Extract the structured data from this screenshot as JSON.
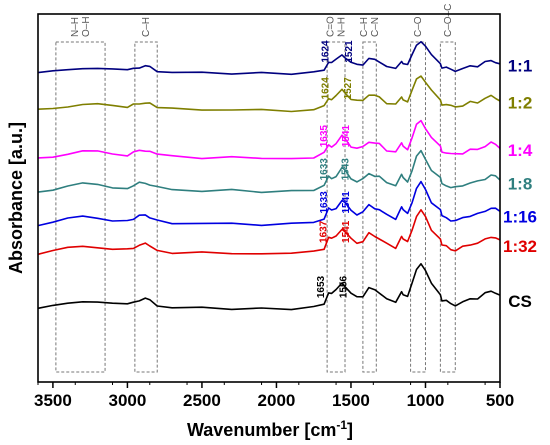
{
  "chart_data": {
    "type": "line",
    "title": "",
    "xlabel": "Wavenumber [cm",
    "xlabel_sup": "-1",
    "xlabel_end": "]",
    "ylabel": "Absorbance [a.u.]",
    "xlim": [
      3600,
      500
    ],
    "x_reversed": true,
    "y_ticks_shown": false,
    "grid": false,
    "legend": "inline-right",
    "x_ticks": [
      3500,
      3000,
      2500,
      2000,
      1500,
      1000,
      500
    ],
    "x_tick_labels": [
      "3500",
      "3000",
      "2500",
      "2000",
      "1500",
      "1000",
      "500"
    ],
    "band_regions": [
      {
        "labels": [
          "N–H",
          "O–H"
        ],
        "from": 3480,
        "to": 3150
      },
      {
        "labels": [
          "C–H"
        ],
        "from": 2950,
        "to": 2800
      },
      {
        "labels": [
          "C=O",
          "N–H"
        ],
        "from": 1660,
        "to": 1540
      },
      {
        "labels": [
          "C–H",
          "C–N"
        ],
        "from": 1420,
        "to": 1330
      },
      {
        "labels": [
          "C–O"
        ],
        "from": 1100,
        "to": 1000
      },
      {
        "labels": [
          "C–O–C"
        ],
        "from": 900,
        "to": 800
      }
    ],
    "series": [
      {
        "name": "1:1",
        "color": "#00007f",
        "baseline": 0.14,
        "peaks": [
          "1624",
          "1521"
        ]
      },
      {
        "name": "1:2",
        "color": "#7f7f00",
        "baseline": 0.24,
        "peaks": [
          "1624",
          "1527"
        ]
      },
      {
        "name": "1:4",
        "color": "#ff00ff",
        "baseline": 0.37,
        "peaks": [
          "1635",
          "1541"
        ]
      },
      {
        "name": "1:8",
        "color": "#2f7f7f",
        "baseline": 0.46,
        "peaks": [
          "1633",
          "1543"
        ]
      },
      {
        "name": "1:16",
        "color": "#0000e0",
        "baseline": 0.55,
        "peaks": [
          "1633",
          "1541"
        ]
      },
      {
        "name": "1:32",
        "color": "#e00000",
        "baseline": 0.63,
        "peaks": [
          "1637",
          "1541"
        ]
      },
      {
        "name": "CS",
        "color": "#000000",
        "baseline": 0.78,
        "peaks": [
          "1653",
          "1556"
        ]
      }
    ],
    "shape_points": [
      [
        3600,
        0.0
      ],
      [
        3500,
        0.03
      ],
      [
        3400,
        0.07
      ],
      [
        3300,
        0.1
      ],
      [
        3200,
        0.09
      ],
      [
        3100,
        0.06
      ],
      [
        3000,
        0.05
      ],
      [
        2960,
        0.08
      ],
      [
        2920,
        0.11
      ],
      [
        2880,
        0.12
      ],
      [
        2850,
        0.1
      ],
      [
        2800,
        0.05
      ],
      [
        2700,
        0.02
      ],
      [
        2500,
        0.01
      ],
      [
        2300,
        0.01
      ],
      [
        2100,
        0.0
      ],
      [
        1900,
        0.0
      ],
      [
        1750,
        0.02
      ],
      [
        1680,
        0.07
      ],
      [
        1650,
        0.2
      ],
      [
        1630,
        0.18
      ],
      [
        1600,
        0.22
      ],
      [
        1560,
        0.32
      ],
      [
        1540,
        0.28
      ],
      [
        1500,
        0.18
      ],
      [
        1460,
        0.14
      ],
      [
        1420,
        0.16
      ],
      [
        1380,
        0.25
      ],
      [
        1340,
        0.22
      ],
      [
        1310,
        0.2
      ],
      [
        1260,
        0.12
      ],
      [
        1200,
        0.08
      ],
      [
        1160,
        0.22
      ],
      [
        1150,
        0.18
      ],
      [
        1120,
        0.14
      ],
      [
        1090,
        0.3
      ],
      [
        1060,
        0.48
      ],
      [
        1030,
        0.55
      ],
      [
        1000,
        0.45
      ],
      [
        960,
        0.3
      ],
      [
        900,
        0.18
      ],
      [
        890,
        0.1
      ],
      [
        860,
        0.09
      ],
      [
        830,
        0.06
      ],
      [
        800,
        0.05
      ],
      [
        750,
        0.08
      ],
      [
        700,
        0.12
      ],
      [
        650,
        0.13
      ],
      [
        600,
        0.18
      ],
      [
        560,
        0.22
      ],
      [
        530,
        0.2
      ],
      [
        500,
        0.16
      ]
    ]
  }
}
